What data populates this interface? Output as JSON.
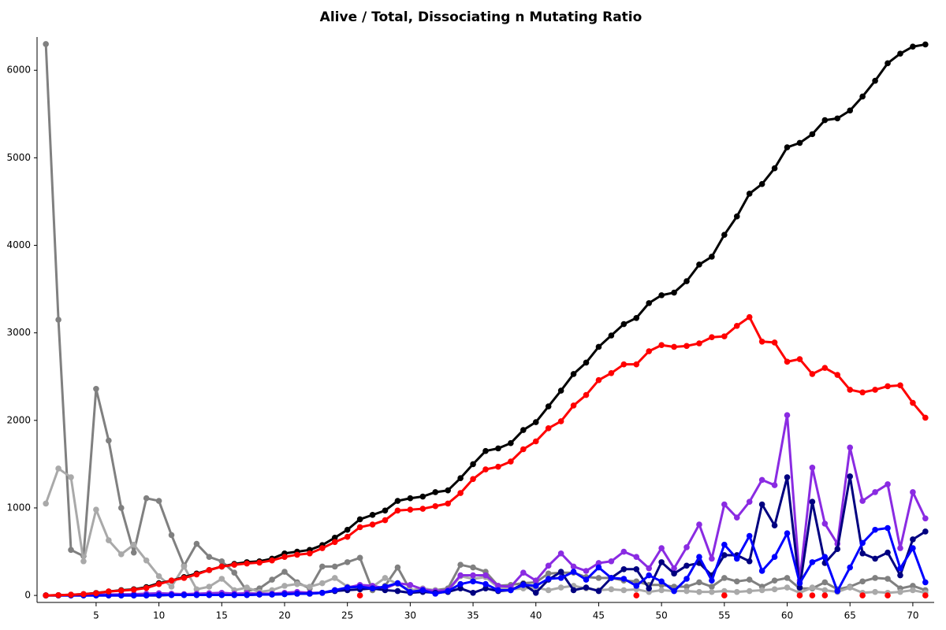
{
  "chart_data": {
    "type": "line",
    "title": "Alive / Total, Dissociating n Mutating Ratio",
    "x": [
      1,
      2,
      3,
      4,
      5,
      6,
      7,
      8,
      9,
      10,
      11,
      12,
      13,
      14,
      15,
      16,
      17,
      18,
      19,
      20,
      21,
      22,
      23,
      24,
      25,
      26,
      27,
      28,
      29,
      30,
      31,
      32,
      33,
      34,
      35,
      36,
      37,
      38,
      39,
      40,
      41,
      42,
      43,
      44,
      45,
      46,
      47,
      48,
      49,
      50,
      51,
      52,
      53,
      54,
      55,
      56,
      57,
      58,
      59,
      60,
      61,
      62,
      63,
      64,
      65,
      66,
      67,
      68,
      69,
      70,
      71
    ],
    "xlim": [
      0.3,
      71.7
    ],
    "xticks": [
      5,
      10,
      15,
      20,
      25,
      30,
      35,
      40,
      45,
      50,
      55,
      60,
      65,
      70
    ],
    "ylim": [
      -80,
      6380
    ],
    "yticks": [
      0,
      1000,
      2000,
      3000,
      4000,
      5000,
      6000
    ],
    "series": [
      {
        "color": "#808080",
        "line": true,
        "values": [
          6300,
          3150,
          520,
          450,
          2360,
          1770,
          1000,
          490,
          1110,
          1080,
          690,
          340,
          590,
          440,
          390,
          260,
          50,
          80,
          180,
          270,
          150,
          80,
          330,
          330,
          380,
          430,
          60,
          110,
          320,
          60,
          70,
          60,
          80,
          350,
          320,
          270,
          110,
          120,
          140,
          150,
          250,
          260,
          260,
          210,
          200,
          200,
          170,
          160,
          120,
          120,
          100,
          100,
          150,
          100,
          200,
          160,
          180,
          100,
          170,
          200,
          80,
          80,
          150,
          70,
          100,
          160,
          200,
          190,
          80,
          110,
          60
        ]
      },
      {
        "color": "#a9a9a9",
        "line": true,
        "values": [
          1050,
          1450,
          1350,
          390,
          980,
          630,
          470,
          580,
          400,
          220,
          100,
          330,
          70,
          100,
          190,
          60,
          90,
          40,
          60,
          110,
          130,
          100,
          140,
          200,
          100,
          90,
          100,
          200,
          130,
          60,
          80,
          60,
          50,
          220,
          190,
          210,
          90,
          70,
          80,
          90,
          60,
          90,
          110,
          80,
          60,
          70,
          60,
          70,
          40,
          60,
          50,
          50,
          40,
          40,
          50,
          40,
          50,
          60,
          70,
          90,
          30,
          90,
          60,
          40,
          90,
          30,
          40,
          30,
          40,
          60,
          30
        ]
      },
      {
        "color": "#8a2be2",
        "line": true,
        "values": [
          0,
          2,
          3,
          5,
          8,
          10,
          12,
          14,
          20,
          25,
          20,
          15,
          20,
          25,
          30,
          20,
          25,
          20,
          20,
          30,
          40,
          30,
          30,
          60,
          90,
          120,
          110,
          80,
          140,
          120,
          70,
          50,
          60,
          230,
          230,
          230,
          110,
          100,
          260,
          170,
          340,
          480,
          330,
          280,
          370,
          390,
          500,
          440,
          310,
          540,
          310,
          550,
          810,
          420,
          1040,
          890,
          1070,
          1320,
          1260,
          2060,
          170,
          1460,
          820,
          590,
          1690,
          1080,
          1180,
          1270,
          540,
          1180,
          880
        ]
      },
      {
        "color": "#000080",
        "line": true,
        "values": [
          0,
          0,
          0,
          0,
          0,
          0,
          0,
          0,
          0,
          0,
          5,
          5,
          5,
          5,
          5,
          5,
          5,
          10,
          10,
          15,
          20,
          20,
          30,
          50,
          60,
          70,
          80,
          60,
          50,
          30,
          40,
          30,
          40,
          80,
          30,
          80,
          50,
          60,
          130,
          30,
          180,
          270,
          60,
          90,
          50,
          200,
          300,
          300,
          80,
          380,
          250,
          340,
          370,
          230,
          460,
          460,
          390,
          1040,
          800,
          1350,
          90,
          1070,
          370,
          530,
          1360,
          480,
          420,
          490,
          230,
          640,
          730
        ]
      },
      {
        "color": "#0000ff",
        "line": true,
        "values": [
          0,
          0,
          0,
          0,
          0,
          0,
          0,
          0,
          0,
          5,
          5,
          5,
          5,
          5,
          5,
          5,
          5,
          10,
          10,
          15,
          20,
          20,
          30,
          60,
          90,
          100,
          80,
          100,
          140,
          40,
          60,
          20,
          50,
          130,
          160,
          130,
          60,
          60,
          120,
          110,
          190,
          200,
          270,
          180,
          320,
          200,
          190,
          110,
          230,
          160,
          50,
          190,
          440,
          170,
          580,
          420,
          680,
          280,
          440,
          710,
          140,
          380,
          440,
          50,
          320,
          600,
          750,
          770,
          310,
          540,
          150
        ]
      },
      {
        "color": "#000000",
        "line": true,
        "values": [
          0,
          3,
          8,
          15,
          28,
          45,
          60,
          70,
          95,
          140,
          170,
          210,
          250,
          290,
          330,
          360,
          380,
          390,
          420,
          480,
          500,
          520,
          575,
          660,
          750,
          870,
          920,
          970,
          1080,
          1110,
          1130,
          1180,
          1200,
          1340,
          1500,
          1650,
          1680,
          1740,
          1890,
          1980,
          2160,
          2340,
          2530,
          2660,
          2840,
          2970,
          3100,
          3170,
          3340,
          3430,
          3460,
          3590,
          3780,
          3870,
          4120,
          4330,
          4590,
          4700,
          4880,
          5120,
          5170,
          5270,
          5430,
          5450,
          5540,
          5700,
          5880,
          6080,
          6190,
          6270,
          6295
        ]
      },
      {
        "color": "#ff0000",
        "line": true,
        "values": [
          0,
          3,
          8,
          15,
          25,
          45,
          55,
          65,
          85,
          130,
          170,
          200,
          240,
          290,
          330,
          350,
          365,
          375,
          400,
          440,
          465,
          480,
          540,
          610,
          670,
          780,
          810,
          860,
          970,
          980,
          990,
          1020,
          1050,
          1170,
          1330,
          1440,
          1470,
          1530,
          1670,
          1760,
          1910,
          1990,
          2170,
          2290,
          2460,
          2540,
          2640,
          2640,
          2790,
          2860,
          2840,
          2850,
          2880,
          2950,
          2960,
          3080,
          3180,
          2900,
          2890,
          2670,
          2700,
          2530,
          2600,
          2520,
          2350,
          2320,
          2350,
          2390,
          2400,
          2200,
          2030
        ]
      },
      {
        "color": "#ff0000",
        "line": false,
        "values": [
          null,
          null,
          null,
          null,
          null,
          null,
          null,
          null,
          null,
          null,
          null,
          null,
          null,
          null,
          null,
          null,
          null,
          null,
          null,
          null,
          null,
          null,
          null,
          null,
          null,
          0,
          null,
          null,
          null,
          null,
          null,
          null,
          null,
          null,
          null,
          null,
          null,
          null,
          null,
          null,
          null,
          null,
          null,
          null,
          null,
          null,
          null,
          0,
          null,
          null,
          null,
          null,
          null,
          null,
          0,
          null,
          null,
          null,
          null,
          null,
          0,
          0,
          0,
          null,
          null,
          0,
          null,
          0,
          null,
          null,
          0
        ]
      }
    ]
  }
}
